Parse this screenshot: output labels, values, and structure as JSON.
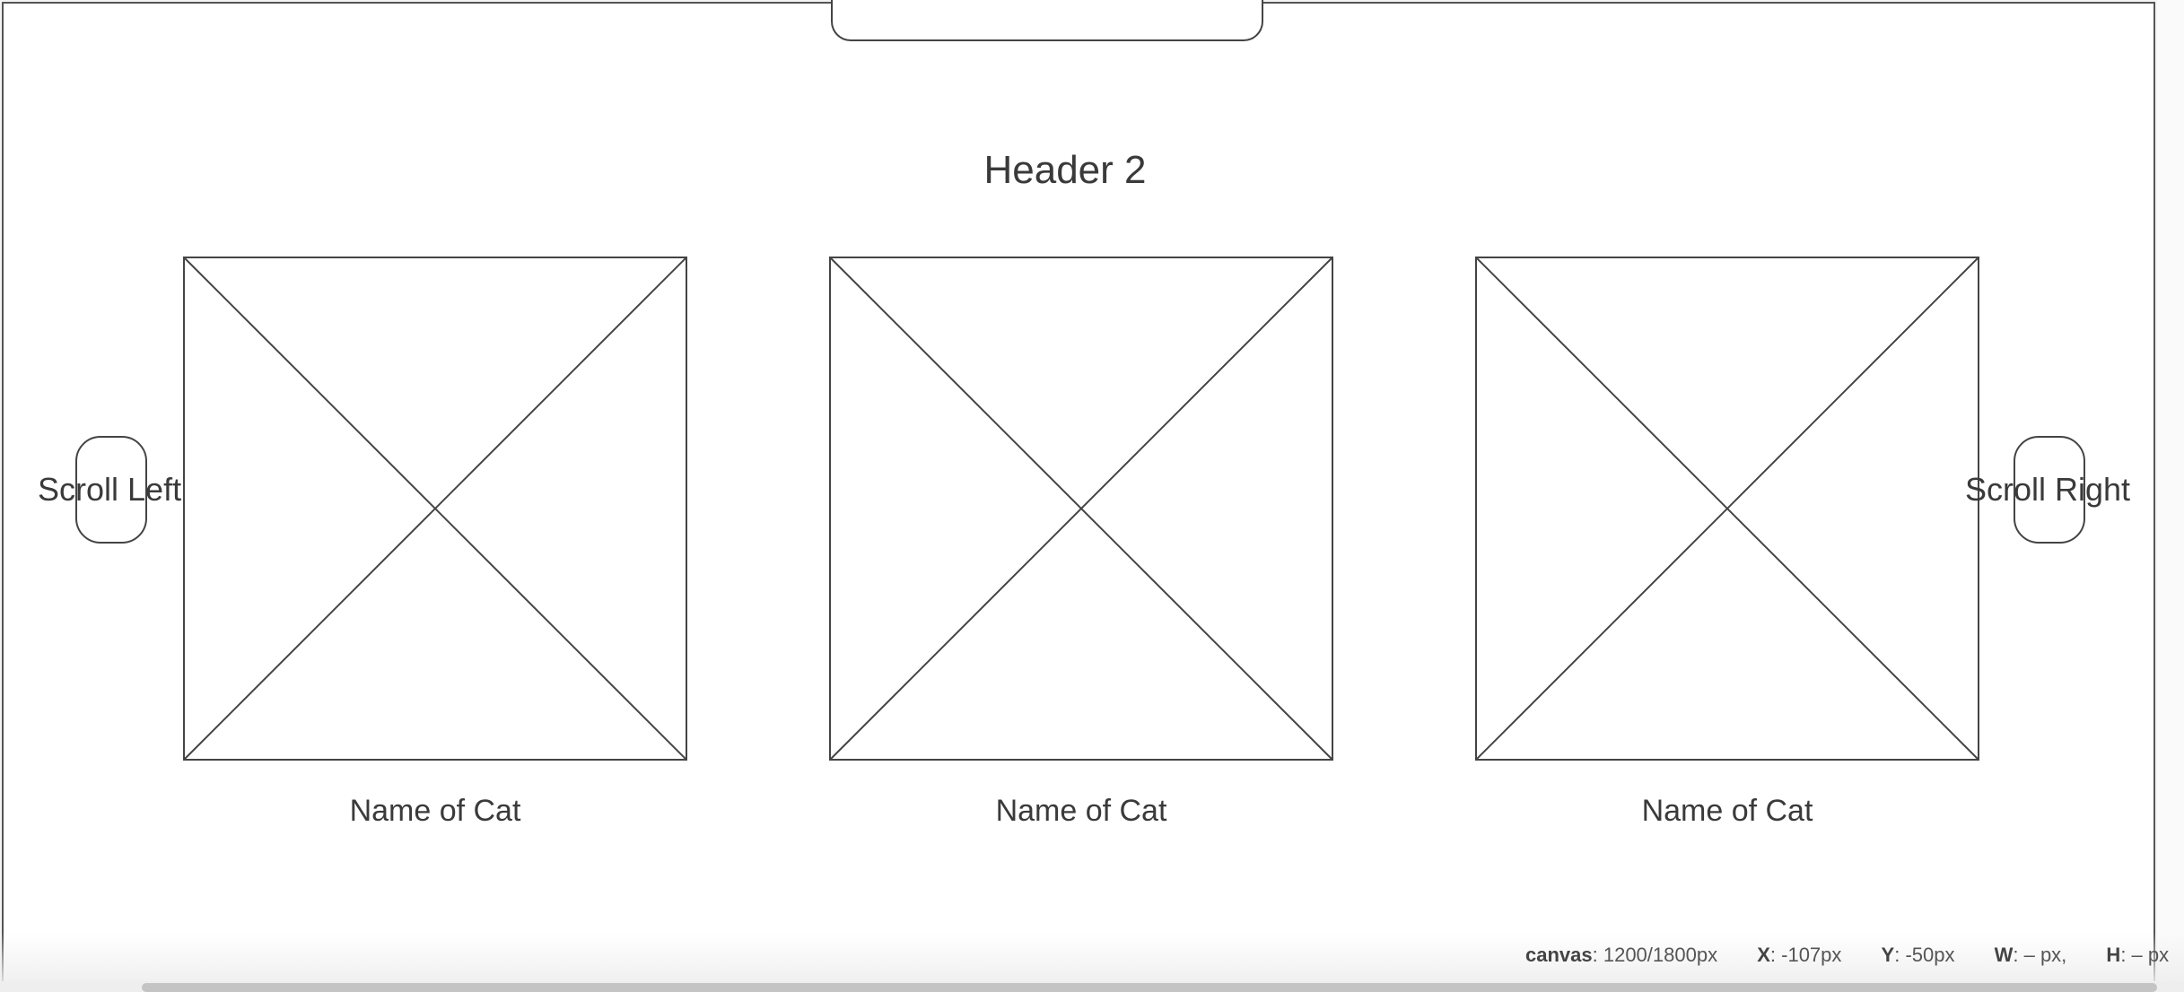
{
  "canvas": {
    "header2": "Header 2",
    "cards": [
      {
        "caption": "Name of Cat"
      },
      {
        "caption": "Name of Cat"
      },
      {
        "caption": "Name of Cat"
      }
    ],
    "scroll_left_label": "Scroll Left",
    "scroll_right_label": "Scroll Right"
  },
  "status_bar": {
    "canvas_label": "canvas",
    "canvas_value": ": 1200/1800px",
    "x_label": "X",
    "x_value": ": -107px",
    "y_label": "Y",
    "y_value": ": -50px",
    "w_label": "W",
    "w_value": ": – px,",
    "h_label": "H",
    "h_value": ": – px"
  },
  "icons": {
    "image_placeholder": "image-placeholder-icon"
  }
}
